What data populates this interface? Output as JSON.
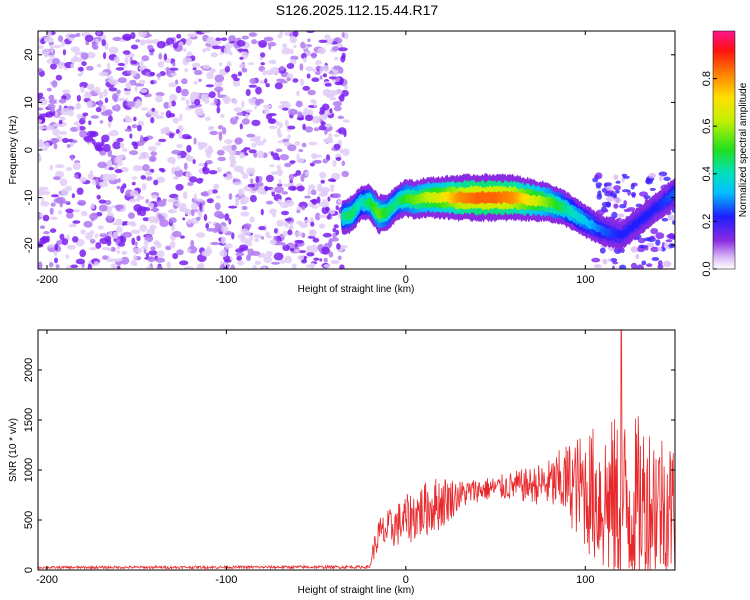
{
  "title": "S126.2025.112.15.44.R17",
  "chart_data": [
    {
      "type": "heatmap",
      "xlabel": "Height of straight line (km)",
      "ylabel": "Frequency (Hz)",
      "xlim": [
        -205,
        150
      ],
      "ylim": [
        -25,
        25
      ],
      "x_ticks": [
        -200,
        -100,
        0,
        100
      ],
      "y_ticks": [
        -20,
        -10,
        0,
        10,
        20
      ],
      "colorbar": {
        "label": "Normalized spectral amplitude",
        "range": [
          0,
          1
        ],
        "ticks": [
          0.0,
          0.2,
          0.4,
          0.6,
          0.8
        ]
      },
      "noise_region_x": [
        -205,
        -35
      ],
      "signal_ridge": {
        "x": [
          -35,
          -30,
          -25,
          -20,
          -15,
          -10,
          -5,
          0,
          5,
          10,
          20,
          30,
          40,
          50,
          60,
          70,
          80,
          90,
          100,
          110,
          120,
          130,
          140,
          150
        ],
        "frequency": [
          -14,
          -13.5,
          -11,
          -11,
          -13.5,
          -13,
          -11,
          -10,
          -10.5,
          -10,
          -10,
          -10,
          -10,
          -10,
          -10,
          -10.5,
          -11,
          -12.5,
          -15,
          -17,
          -18,
          -15,
          -12,
          -9
        ],
        "amplitude": [
          0.45,
          0.5,
          0.4,
          0.5,
          0.6,
          0.5,
          0.45,
          0.55,
          0.6,
          0.65,
          0.75,
          0.9,
          0.95,
          0.95,
          0.9,
          0.75,
          0.6,
          0.45,
          0.35,
          0.25,
          0.2,
          0.2,
          0.2,
          0.25
        ]
      }
    },
    {
      "type": "line",
      "xlabel": "Height of straight line (km)",
      "ylabel": "SNR (10 * v/v)",
      "xlim": [
        -205,
        150
      ],
      "ylim": [
        0,
        2400
      ],
      "x_ticks": [
        -200,
        -100,
        0,
        100
      ],
      "y_ticks": [
        0,
        500,
        1000,
        1500,
        2000
      ],
      "series_color": "#e8282a",
      "envelope": {
        "x": [
          -205,
          -20,
          -19,
          -15,
          -10,
          -5,
          0,
          10,
          20,
          30,
          40,
          50,
          60,
          70,
          80,
          90,
          100,
          110,
          120,
          130,
          140,
          150
        ],
        "base": [
          25,
          30,
          150,
          350,
          400,
          450,
          500,
          600,
          680,
          750,
          800,
          820,
          840,
          850,
          860,
          880,
          800,
          700,
          650,
          650,
          700,
          600
        ],
        "spread": [
          12,
          15,
          80,
          180,
          200,
          220,
          250,
          280,
          280,
          150,
          120,
          120,
          150,
          180,
          250,
          400,
          600,
          800,
          900,
          900,
          800,
          700
        ]
      },
      "peak": {
        "x": 120,
        "y": 2400
      }
    }
  ],
  "colors": {
    "noise_light": "#e0ccf7",
    "noise_dark": "#7a1ff0",
    "line": "#e8282a"
  }
}
